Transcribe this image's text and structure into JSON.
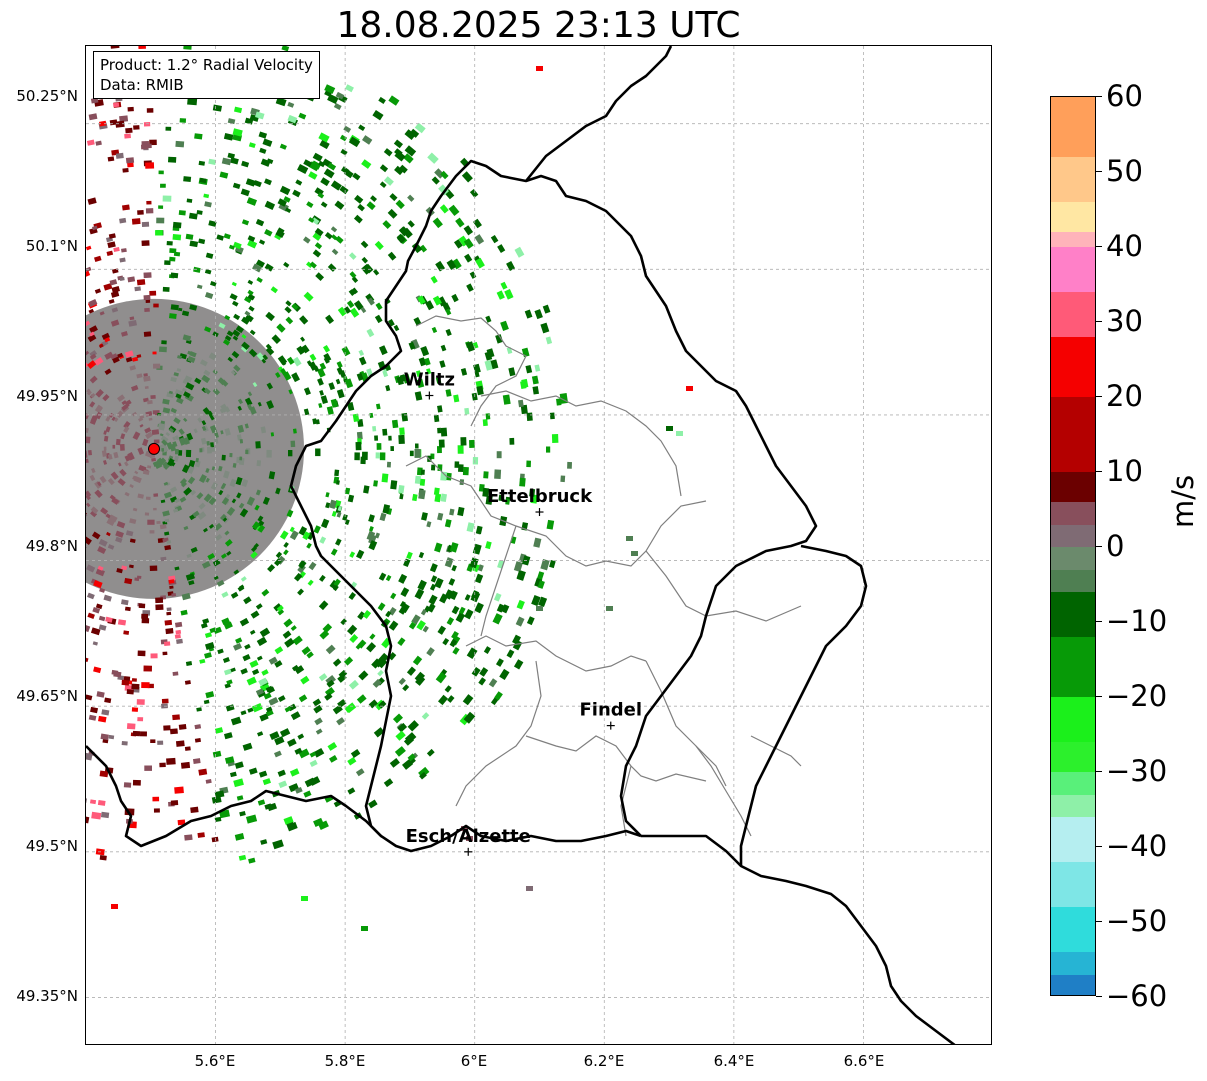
{
  "title": "18.08.2025 23:13 UTC",
  "info_box": {
    "product": "Product: 1.2° Radial Velocity",
    "data": "Data: RMIB"
  },
  "lat_labels": [
    "50.25°N",
    "50.1°N",
    "49.95°N",
    "49.8°N",
    "49.65°N",
    "49.5°N",
    "49.35°N"
  ],
  "lon_labels": [
    "5.6°E",
    "5.8°E",
    "6°E",
    "6.2°E",
    "6.4°E",
    "6.6°E"
  ],
  "cities": [
    {
      "name": "Wiltz",
      "lon": 5.93,
      "lat": 49.97
    },
    {
      "name": "Ettelbruck",
      "lon": 6.1,
      "lat": 49.85
    },
    {
      "name": "Findel",
      "lon": 6.21,
      "lat": 49.63
    },
    {
      "name": "Esch/Alzette",
      "lon": 5.99,
      "lat": 49.5
    }
  ],
  "radar_site": {
    "lon": 5.505,
    "lat": 49.915
  },
  "colorbar": {
    "unit": "m/s",
    "min": -60,
    "max": 60,
    "tick_labels": [
      "60",
      "50",
      "40",
      "30",
      "20",
      "10",
      "0",
      "−10",
      "−20",
      "−30",
      "−40",
      "−50",
      "−60"
    ],
    "colors": {
      "deep_blue": "#1f7fc6",
      "cyan": "#2fdcdc",
      "pale_cyan": "#b5eef0",
      "light_green": "#8ef0a8",
      "bright_green": "#1bf01b",
      "green": "#079a07",
      "dark_green": "#006400",
      "gray_green": "#4f7f52",
      "gray_mauve": "#7f6b74",
      "mauve": "#884f5c",
      "dark_red": "#6b0000",
      "red": "#f50000",
      "pink": "#ff80c8",
      "salmon": "#ffb3ba",
      "pale_yellow": "#ffe7a3",
      "orange": "#ff9f5a"
    }
  }
}
